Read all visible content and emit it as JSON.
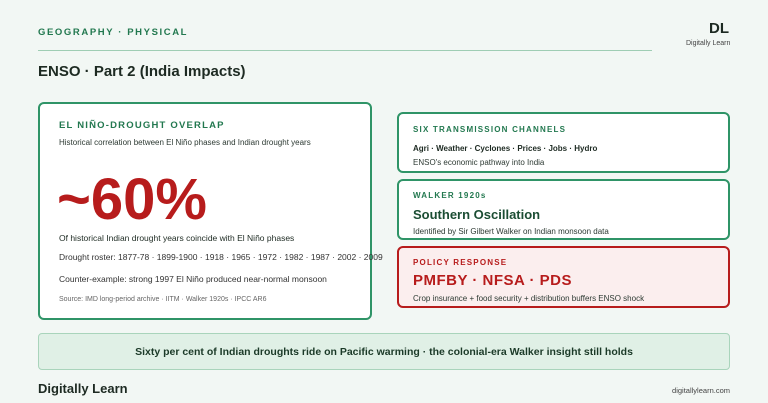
{
  "header": {
    "section": "GEOGRAPHY · PHYSICAL",
    "logo": "DL",
    "logo_caption": "Digitally Learn"
  },
  "title": "ENSO · Part 2 (India Impacts)",
  "main_card": {
    "label": "EL NIÑO-DROUGHT OVERLAP",
    "subtitle": "Historical correlation between El Niño phases and Indian drought years",
    "stat": "~60%",
    "stat_caption": "Of historical Indian drought years coincide with El Niño phases",
    "roster": "Drought roster: 1877-78 · 1899-1900 · 1918 · 1965 · 1972 · 1982 · 1987 · 2002 · 2009",
    "counter_example": "Counter-example: strong 1997 El Niño produced near-normal monsoon",
    "source": "Source: IMD long-period archive · IITM · Walker 1920s · IPCC AR6"
  },
  "side_cards": [
    {
      "label": "SIX TRANSMISSION CHANNELS",
      "heading": "Agri · Weather · Cyclones · Prices · Jobs · Hydro",
      "note": "ENSO's economic pathway into India"
    },
    {
      "label": "WALKER 1920s",
      "heading": "Southern Oscillation",
      "note": "Identified by Sir Gilbert Walker on Indian monsoon data"
    },
    {
      "label": "POLICY RESPONSE",
      "heading": "PMFBY · NFSA · PDS",
      "note": "Crop insurance + food security + distribution buffers ENSO shock"
    }
  ],
  "banner": "Sixty per cent of Indian droughts ride on Pacific warming · the colonial-era Walker insight still holds",
  "footer": {
    "brand": "Digitally Learn",
    "url": "digitallylearn.com"
  }
}
